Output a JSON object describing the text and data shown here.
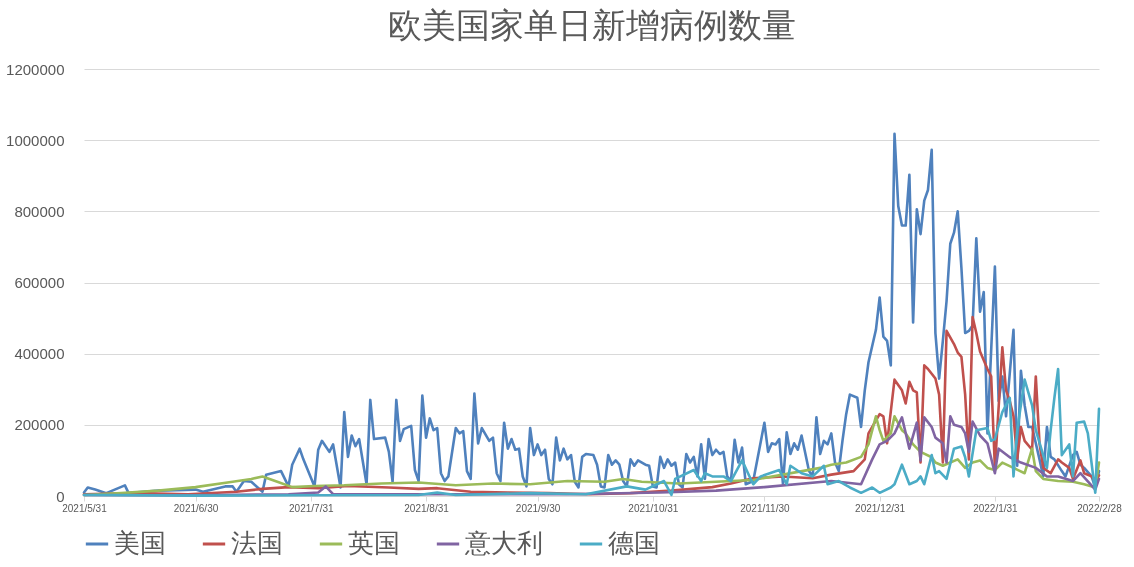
{
  "chart_data": {
    "type": "line",
    "title": "欧美国家单日新增病例数量",
    "xlim": [
      "2021-05-31",
      "2022-02-28"
    ],
    "xticks": [
      {
        "value": "2021-05-31",
        "label": "2021/5/31"
      },
      {
        "value": "2021-06-30",
        "label": "2021/6/30"
      },
      {
        "value": "2021-07-31",
        "label": "2021/7/31"
      },
      {
        "value": "2021-08-31",
        "label": "2021/8/31"
      },
      {
        "value": "2021-09-30",
        "label": "2021/9/30"
      },
      {
        "value": "2021-10-31",
        "label": "2021/10/31"
      },
      {
        "value": "2021-11-30",
        "label": "2021/11/30"
      },
      {
        "value": "2021-12-31",
        "label": "2021/12/31"
      },
      {
        "value": "2022-01-31",
        "label": "2022/1/31"
      },
      {
        "value": "2022-02-28",
        "label": "2022/2/28"
      }
    ],
    "ylim": [
      0,
      1200000
    ],
    "yticks": [
      0,
      200000,
      400000,
      600000,
      800000,
      1000000,
      1200000
    ],
    "grid": "y",
    "legend": "bottom",
    "line_style": "solid",
    "series": [
      {
        "name": "美国",
        "color": "#4f81bd",
        "x": [
          "2021-05-31",
          "2021-06-01",
          "2021-06-03",
          "2021-06-06",
          "2021-06-11",
          "2021-06-12",
          "2021-06-20",
          "2021-06-30",
          "2021-07-02",
          "2021-07-08",
          "2021-07-10",
          "2021-07-11",
          "2021-07-13",
          "2021-07-15",
          "2021-07-18",
          "2021-07-19",
          "2021-07-23",
          "2021-07-25",
          "2021-07-26",
          "2021-07-28",
          "2021-07-29",
          "2021-08-01",
          "2021-08-02",
          "2021-08-03",
          "2021-08-05",
          "2021-08-06",
          "2021-08-08",
          "2021-08-09",
          "2021-08-10",
          "2021-08-11",
          "2021-08-12",
          "2021-08-13",
          "2021-08-15",
          "2021-08-16",
          "2021-08-17",
          "2021-08-20",
          "2021-08-21",
          "2021-08-22",
          "2021-08-23",
          "2021-08-24",
          "2021-08-25",
          "2021-08-27",
          "2021-08-28",
          "2021-08-29",
          "2021-08-30",
          "2021-08-31",
          "2021-09-01",
          "2021-09-02",
          "2021-09-03",
          "2021-09-04",
          "2021-09-05",
          "2021-09-06",
          "2021-09-08",
          "2021-09-09",
          "2021-09-10",
          "2021-09-11",
          "2021-09-12",
          "2021-09-13",
          "2021-09-14",
          "2021-09-15",
          "2021-09-17",
          "2021-09-18",
          "2021-09-19",
          "2021-09-20",
          "2021-09-21",
          "2021-09-22",
          "2021-09-23",
          "2021-09-24",
          "2021-09-25",
          "2021-09-26",
          "2021-09-27",
          "2021-09-28",
          "2021-09-29",
          "2021-09-30",
          "2021-10-01",
          "2021-10-02",
          "2021-10-03",
          "2021-10-04",
          "2021-10-05",
          "2021-10-06",
          "2021-10-07",
          "2021-10-08",
          "2021-10-09",
          "2021-10-10",
          "2021-10-11",
          "2021-10-12",
          "2021-10-13",
          "2021-10-15",
          "2021-10-16",
          "2021-10-17",
          "2021-10-18",
          "2021-10-19",
          "2021-10-20",
          "2021-10-21",
          "2021-10-22",
          "2021-10-23",
          "2021-10-24",
          "2021-10-25",
          "2021-10-26",
          "2021-10-27",
          "2021-10-29",
          "2021-10-30",
          "2021-10-31",
          "2021-11-01",
          "2021-11-02",
          "2021-11-03",
          "2021-11-04",
          "2021-11-05",
          "2021-11-06",
          "2021-11-07",
          "2021-11-08",
          "2021-11-09",
          "2021-11-10",
          "2021-11-11",
          "2021-11-12",
          "2021-11-13",
          "2021-11-14",
          "2021-11-15",
          "2021-11-16",
          "2021-11-17",
          "2021-11-18",
          "2021-11-19",
          "2021-11-20",
          "2021-11-21",
          "2021-11-22",
          "2021-11-23",
          "2021-11-24",
          "2021-11-25",
          "2021-11-27",
          "2021-11-30",
          "2021-12-01",
          "2021-12-02",
          "2021-12-03",
          "2021-12-04",
          "2021-12-05",
          "2021-12-06",
          "2021-12-07",
          "2021-12-08",
          "2021-12-09",
          "2021-12-10",
          "2021-12-12",
          "2021-12-13",
          "2021-12-14",
          "2021-12-15",
          "2021-12-16",
          "2021-12-17",
          "2021-12-18",
          "2021-12-19",
          "2021-12-20",
          "2021-12-21",
          "2021-12-22",
          "2021-12-23",
          "2021-12-25",
          "2021-12-26",
          "2021-12-27",
          "2021-12-28",
          "2021-12-30",
          "2021-12-31",
          "2022-01-01",
          "2022-01-02",
          "2022-01-03",
          "2022-01-04",
          "2022-01-05",
          "2022-01-06",
          "2022-01-07",
          "2022-01-08",
          "2022-01-09",
          "2022-01-10",
          "2022-01-11",
          "2022-01-12",
          "2022-01-13",
          "2022-01-14",
          "2022-01-15",
          "2022-01-16",
          "2022-01-17",
          "2022-01-18",
          "2022-01-19",
          "2022-01-20",
          "2022-01-21",
          "2022-01-22",
          "2022-01-23",
          "2022-01-24",
          "2022-01-25",
          "2022-01-26",
          "2022-01-27",
          "2022-01-28",
          "2022-01-29",
          "2022-01-31",
          "2022-02-01",
          "2022-02-02",
          "2022-02-03",
          "2022-02-05",
          "2022-02-06",
          "2022-02-07",
          "2022-02-08",
          "2022-02-09",
          "2022-02-10",
          "2022-02-12",
          "2022-02-13",
          "2022-02-14",
          "2022-02-15",
          "2022-02-16",
          "2022-02-18",
          "2022-02-19",
          "2022-02-21",
          "2022-02-22",
          "2022-02-23",
          "2022-02-24",
          "2022-02-26",
          "2022-02-27",
          "2022-02-28"
        ],
        "values": [
          10000,
          24000,
          18000,
          8000,
          30000,
          8000,
          15000,
          18000,
          12000,
          27000,
          27000,
          12000,
          42000,
          40000,
          12000,
          60000,
          70000,
          27000,
          88000,
          133000,
          103000,
          27000,
          130000,
          155000,
          124000,
          145000,
          24000,
          236000,
          110000,
          170000,
          140000,
          160000,
          33000,
          270000,
          160000,
          164000,
          124000,
          40000,
          270000,
          155000,
          188000,
          197000,
          73000,
          42000,
          282000,
          164000,
          218000,
          185000,
          191000,
          64000,
          42000,
          55000,
          191000,
          176000,
          182000,
          70000,
          48000,
          288000,
          148000,
          191000,
          155000,
          164000,
          64000,
          42000,
          206000,
          133000,
          160000,
          130000,
          133000,
          55000,
          27000,
          191000,
          115000,
          145000,
          115000,
          130000,
          48000,
          33000,
          164000,
          100000,
          133000,
          103000,
          115000,
          40000,
          24000,
          110000,
          118000,
          115000,
          88000,
          27000,
          24000,
          115000,
          88000,
          100000,
          88000,
          42000,
          27000,
          103000,
          85000,
          100000,
          88000,
          85000,
          27000,
          24000,
          110000,
          79000,
          103000,
          85000,
          94000,
          33000,
          24000,
          118000,
          94000,
          110000,
          55000,
          145000,
          48000,
          160000,
          115000,
          130000,
          118000,
          124000,
          55000,
          42000,
          158000,
          94000,
          136000,
          33000,
          42000,
          206000,
          124000,
          148000,
          145000,
          160000,
          33000,
          179000,
          118000,
          148000,
          130000,
          170000,
          70000,
          55000,
          221000,
          118000,
          155000,
          145000,
          176000,
          94000,
          70000,
          155000,
          230000,
          285000,
          276000,
          194000,
          297000,
          376000,
          467000,
          558000,
          448000,
          436000,
          367000,
          1018000,
          815000,
          760000,
          760000,
          903000,
          488000,
          806000,
          736000,
          830000,
          860000,
          973000,
          458000,
          330000,
          436000,
          548000,
          709000,
          740000,
          800000,
          640000,
          458000,
          464000,
          479000,
          724000,
          518000,
          573000,
          176000,
          645000,
          267000,
          336000,
          224000,
          467000,
          85000,
          352000,
          255000,
          194000,
          194000,
          103000,
          55000,
          194000,
          110000,
          103000,
          70000,
          55000,
          115000,
          124000,
          88000,
          79000,
          55000,
          24000,
          70000
        ]
      },
      {
        "name": "法国",
        "color": "#c0504d",
        "x": [
          "2021-05-31",
          "2021-06-14",
          "2021-06-28",
          "2021-07-11",
          "2021-07-18",
          "2021-07-25",
          "2021-08-02",
          "2021-08-10",
          "2021-08-21",
          "2021-08-29",
          "2021-09-03",
          "2021-09-12",
          "2021-09-22",
          "2021-10-03",
          "2021-10-14",
          "2021-10-25",
          "2021-11-05",
          "2021-11-16",
          "2021-11-21",
          "2021-11-27",
          "2021-12-05",
          "2021-12-13",
          "2021-12-18",
          "2021-12-24",
          "2021-12-27",
          "2021-12-28",
          "2021-12-31",
          "2022-01-01",
          "2022-01-02",
          "2022-01-04",
          "2022-01-06",
          "2022-01-07",
          "2022-01-08",
          "2022-01-09",
          "2022-01-10",
          "2022-01-11",
          "2022-01-12",
          "2022-01-13",
          "2022-01-15",
          "2022-01-16",
          "2022-01-17",
          "2022-01-18",
          "2022-01-20",
          "2022-01-21",
          "2022-01-22",
          "2022-01-23",
          "2022-01-24",
          "2022-01-25",
          "2022-01-26",
          "2022-01-27",
          "2022-01-29",
          "2022-01-30",
          "2022-01-31",
          "2022-02-02",
          "2022-02-03",
          "2022-02-04",
          "2022-02-05",
          "2022-02-06",
          "2022-02-07",
          "2022-02-08",
          "2022-02-10",
          "2022-02-11",
          "2022-02-12",
          "2022-02-13",
          "2022-02-15",
          "2022-02-17",
          "2022-02-18",
          "2022-02-20",
          "2022-02-21",
          "2022-02-23",
          "2022-02-24",
          "2022-02-26",
          "2022-02-27",
          "2022-02-28"
        ],
        "values": [
          5000,
          8000,
          5000,
          12000,
          20000,
          25000,
          22000,
          28000,
          24000,
          20000,
          22000,
          12000,
          10000,
          8000,
          5000,
          8000,
          15000,
          25000,
          35000,
          50000,
          55000,
          50000,
          60000,
          70000,
          103000,
          176000,
          230000,
          224000,
          148000,
          327000,
          297000,
          260000,
          321000,
          297000,
          291000,
          94000,
          367000,
          357000,
          330000,
          285000,
          94000,
          464000,
          427000,
          403000,
          391000,
          285000,
          103000,
          503000,
          458000,
          406000,
          357000,
          336000,
          79000,
          418000,
          297000,
          267000,
          224000,
          103000,
          194000,
          155000,
          130000,
          336000,
          148000,
          79000,
          64000,
          103000,
          94000,
          79000,
          48000,
          100000,
          64000,
          55000,
          40000,
          58000
        ]
      },
      {
        "name": "英国",
        "color": "#9bbb59",
        "x": [
          "2021-05-31",
          "2021-06-10",
          "2021-06-20",
          "2021-06-30",
          "2021-07-10",
          "2021-07-15",
          "2021-07-18",
          "2021-07-22",
          "2021-07-26",
          "2021-08-01",
          "2021-08-09",
          "2021-08-19",
          "2021-08-29",
          "2021-09-08",
          "2021-09-18",
          "2021-09-28",
          "2021-10-08",
          "2021-10-18",
          "2021-10-23",
          "2021-10-28",
          "2021-11-07",
          "2021-11-17",
          "2021-11-27",
          "2021-12-15",
          "2021-12-18",
          "2021-12-22",
          "2021-12-26",
          "2021-12-28",
          "2021-12-30",
          "2021-12-31",
          "2022-01-01",
          "2022-01-03",
          "2022-01-04",
          "2022-01-06",
          "2022-01-07",
          "2022-01-09",
          "2022-01-11",
          "2022-01-14",
          "2022-01-15",
          "2022-01-17",
          "2022-01-19",
          "2022-01-21",
          "2022-01-23",
          "2022-01-25",
          "2022-01-27",
          "2022-01-29",
          "2022-01-31",
          "2022-02-02",
          "2022-02-05",
          "2022-02-08",
          "2022-02-10",
          "2022-02-11",
          "2022-02-13",
          "2022-02-17",
          "2022-02-21",
          "2022-02-24",
          "2022-02-27",
          "2022-02-28"
        ],
        "values": [
          3000,
          8000,
          15000,
          25000,
          40000,
          48000,
          55000,
          40000,
          25000,
          28000,
          30000,
          35000,
          38000,
          30000,
          35000,
          33000,
          42000,
          40000,
          48000,
          40000,
          35000,
          40000,
          45000,
          79000,
          88000,
          94000,
          110000,
          145000,
          224000,
          185000,
          155000,
          176000,
          224000,
          185000,
          176000,
          145000,
          124000,
          109000,
          94000,
          85000,
          94000,
          103000,
          79000,
          94000,
          100000,
          79000,
          73000,
          94000,
          79000,
          64000,
          133000,
          70000,
          48000,
          42000,
          40000,
          33000,
          24000,
          94000
        ]
      },
      {
        "name": "意大利",
        "color": "#8064a2",
        "x": [
          "2021-05-31",
          "2021-06-30",
          "2021-07-25",
          "2021-08-02",
          "2021-08-04",
          "2021-08-06",
          "2021-09-07",
          "2021-10-08",
          "2021-11-02",
          "2021-11-17",
          "2021-11-30",
          "2021-12-18",
          "2021-12-26",
          "2021-12-29",
          "2021-12-31",
          "2022-01-02",
          "2022-01-04",
          "2022-01-06",
          "2022-01-08",
          "2022-01-10",
          "2022-01-11",
          "2022-01-12",
          "2022-01-14",
          "2022-01-15",
          "2022-01-17",
          "2022-01-18",
          "2022-01-19",
          "2022-01-20",
          "2022-01-22",
          "2022-01-23",
          "2022-01-24",
          "2022-01-25",
          "2022-01-27",
          "2022-01-29",
          "2022-01-31",
          "2022-02-01",
          "2022-02-04",
          "2022-02-07",
          "2022-02-11",
          "2022-02-14",
          "2022-02-17",
          "2022-02-21",
          "2022-02-23",
          "2022-02-27",
          "2022-02-28"
        ],
        "values": [
          3000,
          2000,
          5000,
          10000,
          27000,
          5000,
          5000,
          5000,
          10000,
          15000,
          25000,
          42000,
          33000,
          103000,
          145000,
          155000,
          176000,
          221000,
          133000,
          206000,
          100000,
          221000,
          194000,
          164000,
          148000,
          94000,
          224000,
          200000,
          194000,
          176000,
          124000,
          209000,
          170000,
          148000,
          64000,
          133000,
          109000,
          94000,
          79000,
          55000,
          55000,
          42000,
          64000,
          18000,
          48000
        ]
      },
      {
        "name": "德国",
        "color": "#4bacc6",
        "x": [
          "2021-05-31",
          "2021-06-30",
          "2021-07-30",
          "2021-08-29",
          "2021-09-03",
          "2021-09-08",
          "2021-09-28",
          "2021-10-13",
          "2021-10-24",
          "2021-10-29",
          "2021-11-03",
          "2021-11-05",
          "2021-11-06",
          "2021-11-11",
          "2021-11-13",
          "2021-11-14",
          "2021-11-16",
          "2021-11-19",
          "2021-11-21",
          "2021-11-24",
          "2021-11-26",
          "2021-11-27",
          "2021-11-29",
          "2021-12-04",
          "2021-12-06",
          "2021-12-07",
          "2021-12-10",
          "2021-12-13",
          "2021-12-16",
          "2021-12-17",
          "2021-12-20",
          "2021-12-23",
          "2021-12-26",
          "2021-12-29",
          "2021-12-31",
          "2022-01-03",
          "2022-01-04",
          "2022-01-06",
          "2022-01-08",
          "2022-01-10",
          "2022-01-11",
          "2022-01-12",
          "2022-01-14",
          "2022-01-15",
          "2022-01-16",
          "2022-01-18",
          "2022-01-20",
          "2022-01-22",
          "2022-01-23",
          "2022-01-24",
          "2022-01-26",
          "2022-01-29",
          "2022-01-30",
          "2022-01-31",
          "2022-02-02",
          "2022-02-04",
          "2022-02-05",
          "2022-02-06",
          "2022-02-08",
          "2022-02-10",
          "2022-02-11",
          "2022-02-14",
          "2022-02-15",
          "2022-02-16",
          "2022-02-17",
          "2022-02-18",
          "2022-02-20",
          "2022-02-21",
          "2022-02-22",
          "2022-02-24",
          "2022-02-25",
          "2022-02-27",
          "2022-02-28"
        ],
        "values": [
          3000,
          1000,
          2000,
          3000,
          10000,
          3000,
          8000,
          5000,
          27000,
          18000,
          42000,
          3000,
          48000,
          73000,
          42000,
          64000,
          55000,
          55000,
          42000,
          100000,
          55000,
          33000,
          55000,
          73000,
          33000,
          85000,
          64000,
          55000,
          85000,
          33000,
          42000,
          24000,
          9000,
          24000,
          9000,
          24000,
          33000,
          88000,
          33000,
          42000,
          55000,
          33000,
          115000,
          64000,
          70000,
          48000,
          133000,
          139000,
          109000,
          55000,
          185000,
          191000,
          155000,
          160000,
          236000,
          276000,
          55000,
          185000,
          327000,
          255000,
          185000,
          79000,
          185000,
          276000,
          357000,
          115000,
          145000,
          55000,
          206000,
          209000,
          176000,
          9000,
          245000
        ]
      }
    ]
  }
}
